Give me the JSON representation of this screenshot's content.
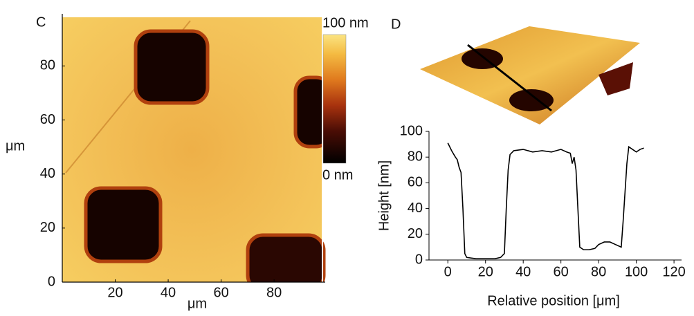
{
  "chart_data": [
    {
      "type": "heatmap",
      "label": "C",
      "xlabel": "μm",
      "ylabel": "μm",
      "xlim": [
        0,
        98
      ],
      "ylim": [
        0,
        98
      ],
      "xticks": [
        20,
        40,
        60,
        80
      ],
      "yticks": [
        0,
        20,
        40,
        60,
        80
      ],
      "colorbar_labels": [
        "100 nm",
        "0 nm"
      ]
    },
    {
      "type": "line",
      "label": "D",
      "xlabel": "Relative position [μm]",
      "ylabel": "Height [nm]",
      "color": "#000000",
      "x": [
        0,
        2,
        4,
        5,
        6,
        7,
        8,
        9,
        10,
        15,
        20,
        25,
        28,
        30,
        31,
        32,
        33,
        35,
        40,
        45,
        50,
        55,
        60,
        63,
        65,
        66,
        67,
        68,
        69,
        70,
        72,
        75,
        78,
        80,
        83,
        86,
        89,
        92,
        93,
        95,
        96,
        98,
        100,
        102,
        104
      ],
      "values": [
        91,
        85,
        80,
        78,
        72,
        68,
        40,
        5,
        2,
        1,
        1,
        1,
        2,
        5,
        40,
        70,
        82,
        85,
        86,
        84,
        85,
        84,
        86,
        84,
        83,
        75,
        80,
        70,
        40,
        10,
        8,
        8,
        9,
        12,
        14,
        14,
        12,
        10,
        30,
        75,
        88,
        86,
        84,
        86,
        87
      ],
      "xlim": [
        -10,
        124
      ],
      "ylim": [
        0,
        100
      ],
      "xticks": [
        0,
        20,
        40,
        60,
        80,
        100,
        120
      ],
      "yticks": [
        0,
        20,
        40,
        60,
        80,
        100
      ]
    }
  ]
}
